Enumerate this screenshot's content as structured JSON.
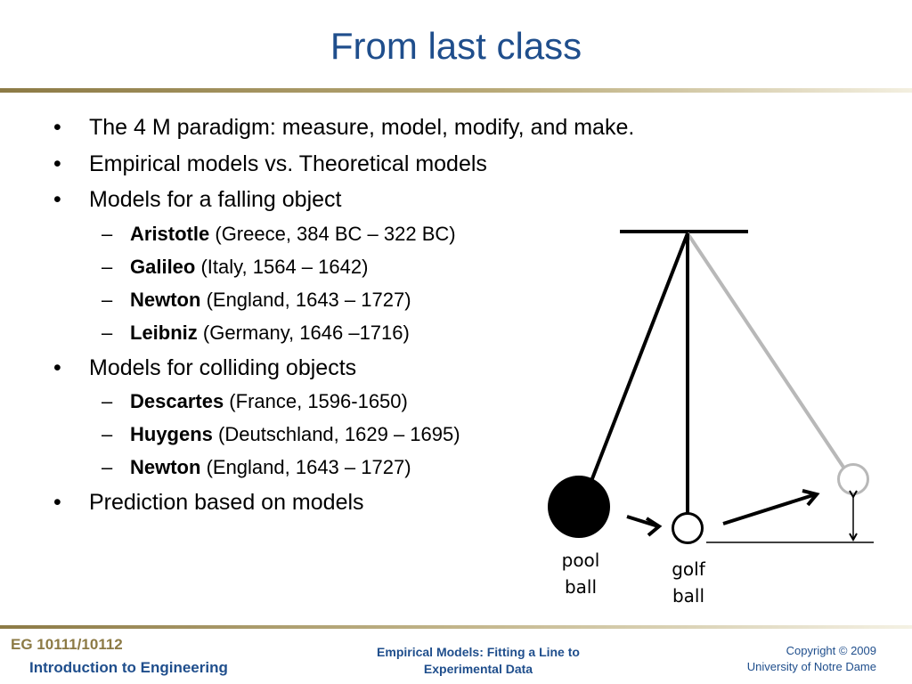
{
  "slide": {
    "title": "From last class"
  },
  "bullets": [
    {
      "text": "The 4 M paradigm: measure, model, modify, and make."
    },
    {
      "text": "Empirical models vs. Theoretical models"
    },
    {
      "text": "Models for a falling object"
    },
    {
      "name": "Aristotle",
      "detail": " (Greece, 384 BC – 322 BC)"
    },
    {
      "name": "Galileo",
      "detail": " (Italy, 1564 – 1642)"
    },
    {
      "name": "Newton",
      "detail": " (England, 1643 – 1727)"
    },
    {
      "name": "Leibniz",
      "detail": " (Germany, 1646 –1716)"
    },
    {
      "text": "Models for colliding objects"
    },
    {
      "name": "Descartes",
      "detail": " (France, 1596-1650)"
    },
    {
      "name": "Huygens",
      "detail": " (Deutschland, 1629 – 1695)"
    },
    {
      "name": "Newton",
      "detail": " (England, 1643 – 1727)"
    },
    {
      "text": "Prediction based on models"
    }
  ],
  "markers": {
    "bullet": "•",
    "dash": "–"
  },
  "diagram": {
    "pool_ball_label": [
      "pool",
      "ball"
    ],
    "golf_ball_label": [
      "golf",
      "ball"
    ]
  },
  "footer": {
    "course_code": "EG 10111/10112",
    "course_name": "Introduction to Engineering",
    "lecture_title_line1": "Empirical Models:  Fitting a Line to",
    "lecture_title_line2": "Experimental Data",
    "copyright": "Copyright © 2009",
    "institution": "University of Notre Dame"
  },
  "colors": {
    "title_blue": "#1f4e8c",
    "footer_gold": "#8c7a45",
    "swing_gray": "#b8b8b8"
  }
}
